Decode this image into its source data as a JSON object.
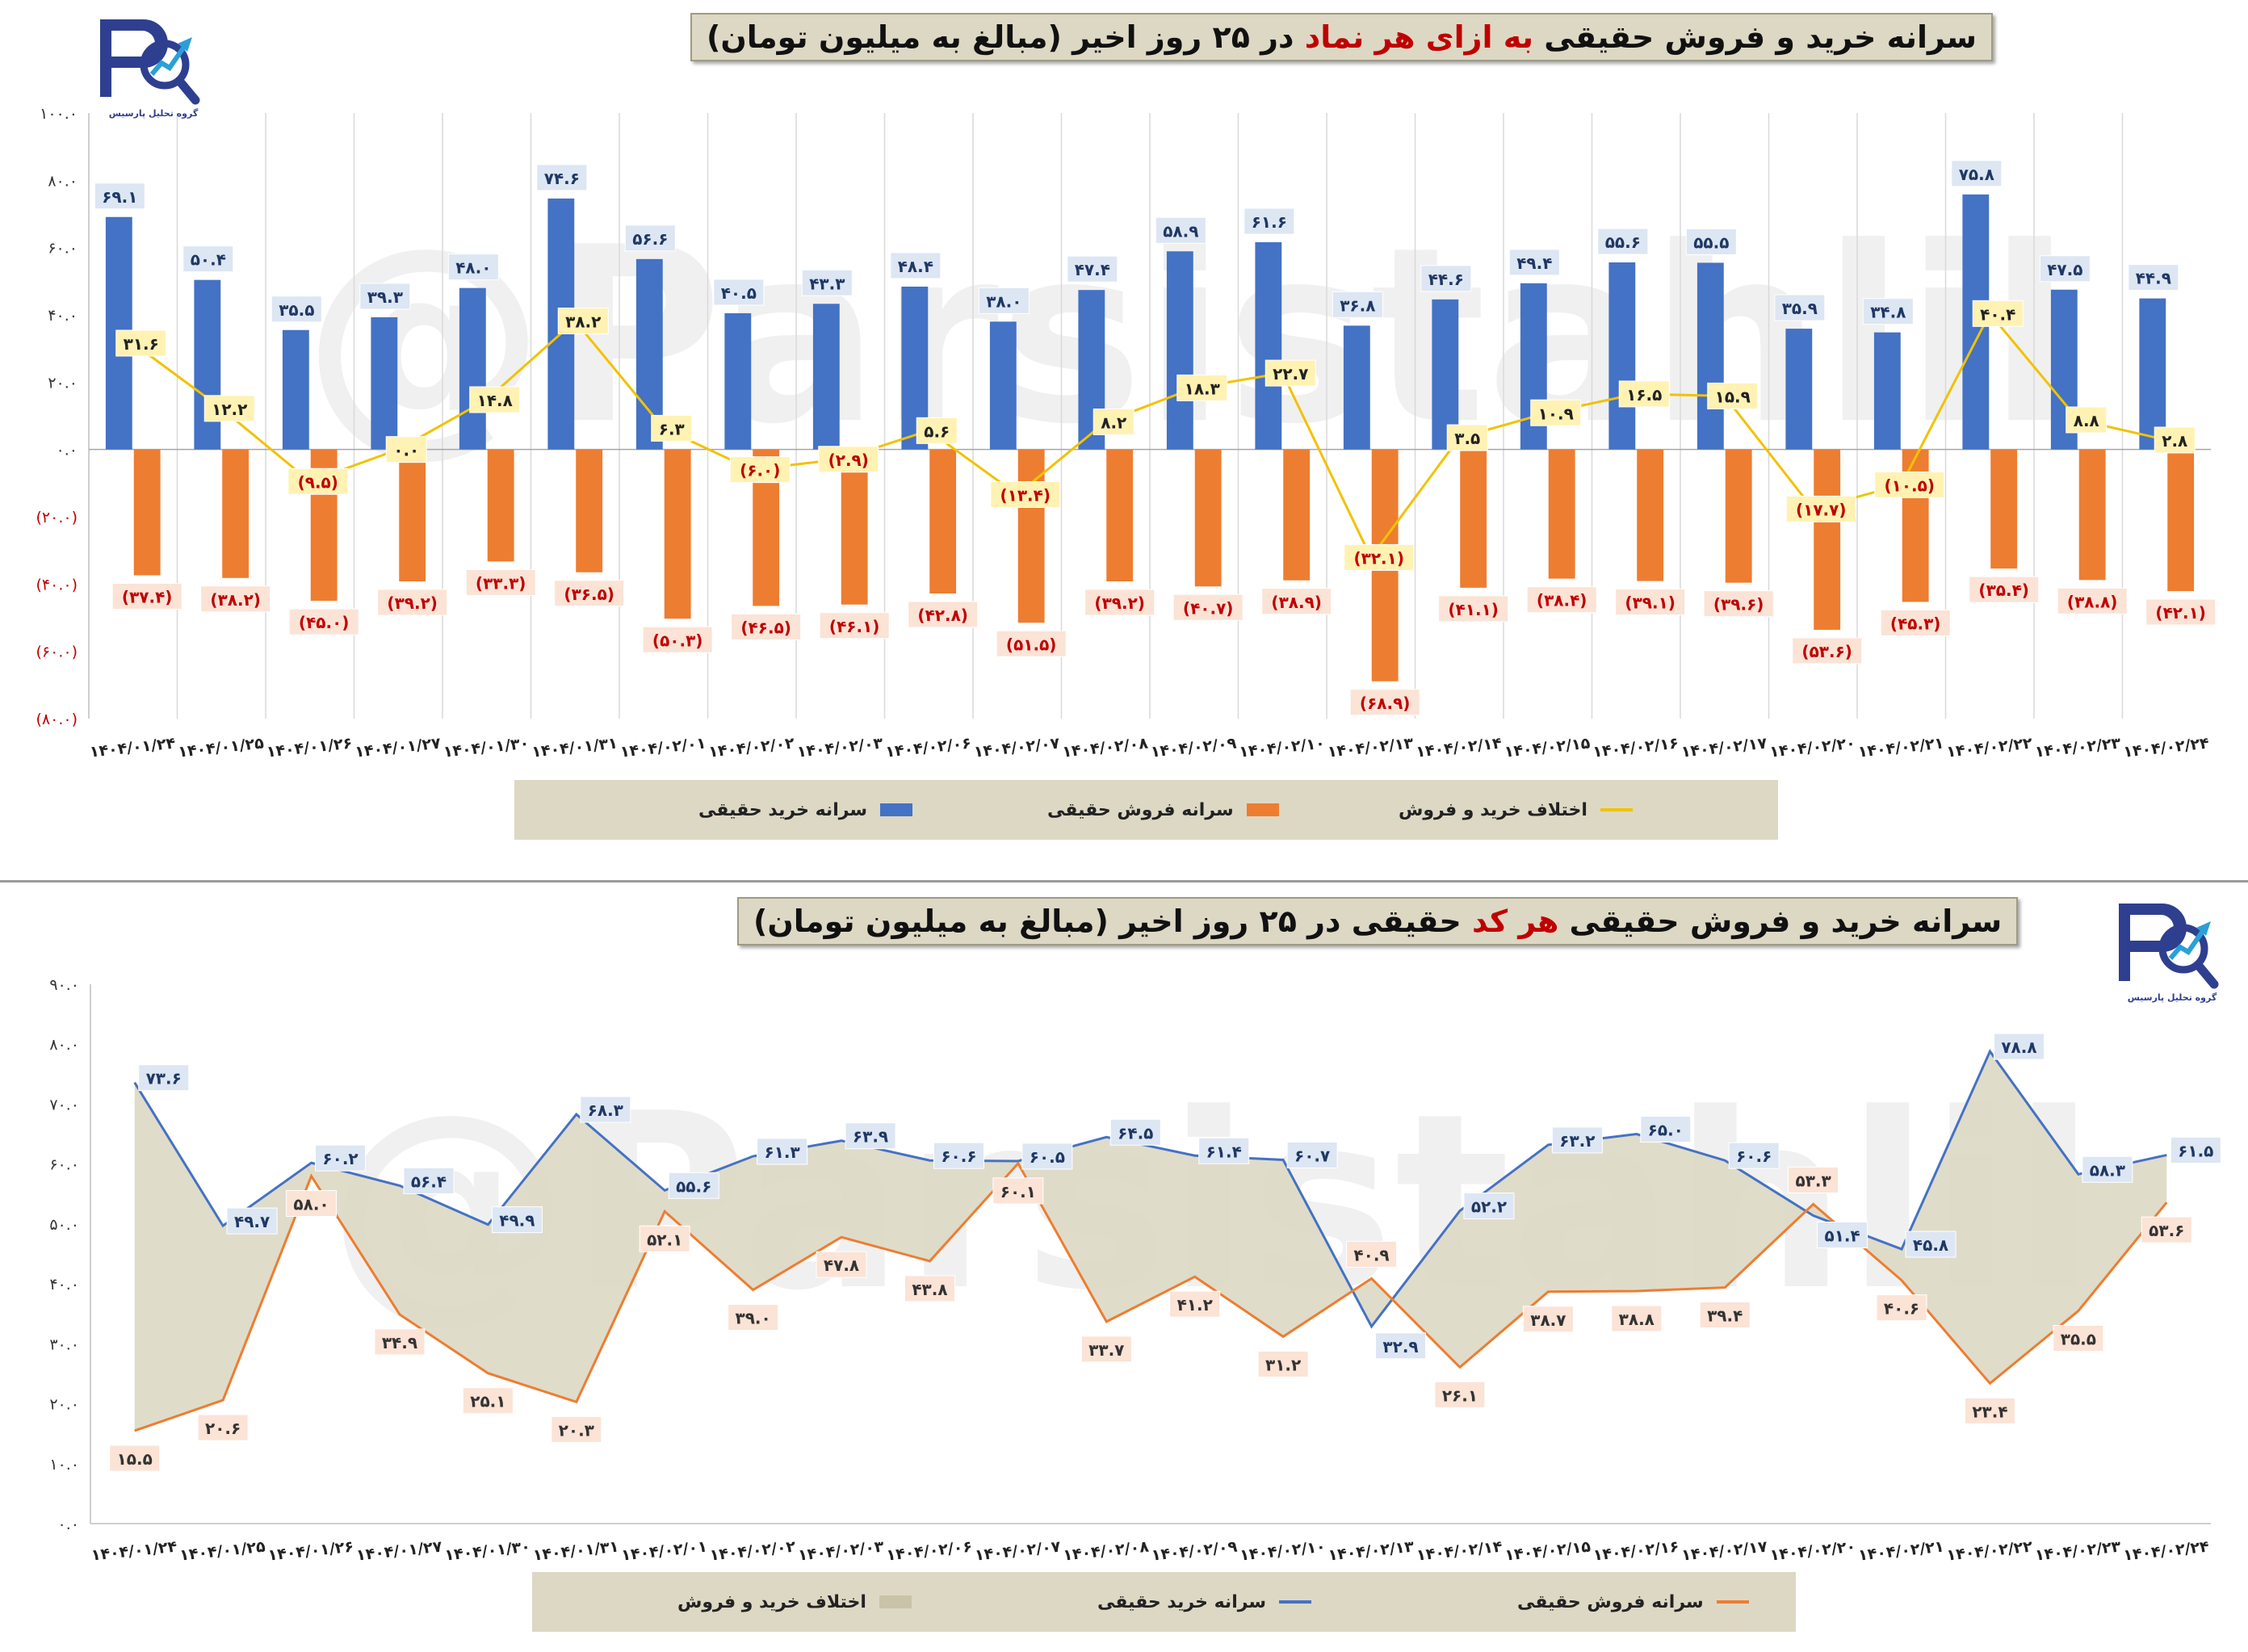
{
  "charts": {
    "top": {
      "title_parts": [
        "سرانه خرید و فروش حقیقی ",
        "به ازای هر نماد",
        " در ۲۵ روز اخیر (مبالغ به میلیون تومان)"
      ],
      "legend": {
        "buy": "سرانه خرید حقیقی",
        "sell": "سرانه فروش حقیقی",
        "diff": "اختلاف خرید و فروش"
      }
    },
    "bottom": {
      "title_parts": [
        "سرانه خرید و فروش حقیقی ",
        "هر کد",
        " حقیقی در ۲۵ روز اخیر (مبالغ به میلیون تومان)"
      ],
      "legend": {
        "diff": "اختلاف خرید و فروش",
        "buy": "سرانه خرید حقیقی",
        "sell": "سرانه فروش حقیقی"
      }
    }
  },
  "logo": {
    "icon": "parsis-tahlil-logo",
    "caption": "گروه تحلیل پارسیس"
  },
  "watermark": "@Parsistahlil",
  "colors": {
    "buy_bar": "#4472c4",
    "sell_bar": "#ed7d31",
    "diff_line": "#f2c200",
    "label_bg_blue": "#dde6f3",
    "label_bg_orange": "#fbe3d6",
    "label_bg_yellow": "#fff2b3",
    "area_fill": "#ddd8c4",
    "legend_bg": "#ddd8c4"
  },
  "chart_data": [
    {
      "type": "bar",
      "categories": [
        "۱۴۰۴/۰۱/۲۴",
        "۱۴۰۴/۰۱/۲۵",
        "۱۴۰۴/۰۱/۲۶",
        "۱۴۰۴/۰۱/۲۷",
        "۱۴۰۴/۰۱/۳۰",
        "۱۴۰۴/۰۱/۳۱",
        "۱۴۰۴/۰۲/۰۱",
        "۱۴۰۴/۰۲/۰۲",
        "۱۴۰۴/۰۲/۰۳",
        "۱۴۰۴/۰۲/۰۶",
        "۱۴۰۴/۰۲/۰۷",
        "۱۴۰۴/۰۲/۰۸",
        "۱۴۰۴/۰۲/۰۹",
        "۱۴۰۴/۰۲/۱۰",
        "۱۴۰۴/۰۲/۱۳",
        "۱۴۰۴/۰۲/۱۴",
        "۱۴۰۴/۰۲/۱۵",
        "۱۴۰۴/۰۲/۱۶",
        "۱۴۰۴/۰۲/۱۷",
        "۱۴۰۴/۰۲/۲۰",
        "۱۴۰۴/۰۲/۲۱",
        "۱۴۰۴/۰۲/۲۲",
        "۱۴۰۴/۰۲/۲۳",
        "۱۴۰۴/۰۲/۲۴"
      ],
      "series": [
        {
          "name": "سرانه خرید حقیقی",
          "kind": "bar",
          "values": [
            69.1,
            50.4,
            35.5,
            39.3,
            48.0,
            74.6,
            56.6,
            40.5,
            43.3,
            48.4,
            38.0,
            47.4,
            58.9,
            61.6,
            36.8,
            44.6,
            49.4,
            55.6,
            55.5,
            35.9,
            34.8,
            75.8,
            47.5,
            44.9
          ],
          "labels": [
            "۶۹.۱",
            "۵۰.۴",
            "۳۵.۵",
            "۳۹.۳",
            "۴۸.۰",
            "۷۴.۶",
            "۵۶.۶",
            "۴۰.۵",
            "۴۳.۳",
            "۴۸.۴",
            "۳۸.۰",
            "۴۷.۴",
            "۵۸.۹",
            "۶۱.۶",
            "۳۶.۸",
            "۴۴.۶",
            "۴۹.۴",
            "۵۵.۶",
            "۵۵.۵",
            "۳۵.۹",
            "۳۴.۸",
            "۷۵.۸",
            "۴۷.۵",
            "۴۴.۹"
          ]
        },
        {
          "name": "سرانه فروش حقیقی",
          "kind": "bar",
          "values": [
            -37.4,
            -38.2,
            -45.0,
            -39.2,
            -33.3,
            -36.5,
            -50.3,
            -46.5,
            -46.1,
            -42.8,
            -51.5,
            -39.2,
            -40.7,
            -38.9,
            -68.9,
            -41.1,
            -38.4,
            -39.1,
            -39.6,
            -53.6,
            -45.3,
            -35.4,
            -38.8,
            -42.1
          ],
          "labels": [
            "(۳۷.۴)",
            "(۳۸.۲)",
            "(۴۵.۰)",
            "(۳۹.۲)",
            "(۳۳.۳)",
            "(۳۶.۵)",
            "(۵۰.۳)",
            "(۴۶.۵)",
            "(۴۶.۱)",
            "(۴۲.۸)",
            "(۵۱.۵)",
            "(۳۹.۲)",
            "(۴۰.۷)",
            "(۳۸.۹)",
            "(۶۸.۹)",
            "(۴۱.۱)",
            "(۳۸.۴)",
            "(۳۹.۱)",
            "(۳۹.۶)",
            "(۵۳.۶)",
            "(۴۵.۳)",
            "(۳۵.۴)",
            "(۳۸.۸)",
            "(۴۲.۱)"
          ]
        },
        {
          "name": "اختلاف خرید و فروش",
          "kind": "line",
          "values": [
            31.6,
            12.2,
            -9.5,
            0.0,
            14.8,
            38.2,
            6.3,
            -6.0,
            -2.9,
            5.6,
            -13.4,
            8.2,
            18.3,
            22.7,
            -32.1,
            3.5,
            10.9,
            16.5,
            15.9,
            -17.7,
            -10.5,
            40.4,
            8.8,
            2.8
          ],
          "labels": [
            "۳۱.۶",
            "۱۲.۲",
            "(۹.۵)",
            "۰.۰",
            "۱۴.۸",
            "۳۸.۲",
            "۶.۳",
            "(۶.۰)",
            "(۲.۹)",
            "۵.۶",
            "(۱۳.۴)",
            "۸.۲",
            "۱۸.۳",
            "۲۲.۷",
            "(۳۲.۱)",
            "۳.۵",
            "۱۰.۹",
            "۱۶.۵",
            "۱۵.۹",
            "(۱۷.۷)",
            "(۱۰.۵)",
            "۴۰.۴",
            "۸.۸",
            "۲.۸"
          ]
        }
      ],
      "ylim": [
        -80,
        100
      ],
      "yticks": [
        -80,
        -60,
        -40,
        -20,
        0,
        20,
        40,
        60,
        80,
        100
      ],
      "ytick_labels": [
        "(۸۰.۰)",
        "(۶۰.۰)",
        "(۴۰.۰)",
        "(۲۰.۰)",
        "۰.۰",
        "۲۰.۰",
        "۴۰.۰",
        "۶۰.۰",
        "۸۰.۰",
        "۱۰۰.۰"
      ],
      "grid": "vertical",
      "legend_position": "bottom"
    },
    {
      "type": "line",
      "categories": [
        "۱۴۰۴/۰۱/۲۴",
        "۱۴۰۴/۰۱/۲۵",
        "۱۴۰۴/۰۱/۲۶",
        "۱۴۰۴/۰۱/۲۷",
        "۱۴۰۴/۰۱/۳۰",
        "۱۴۰۴/۰۱/۳۱",
        "۱۴۰۴/۰۲/۰۱",
        "۱۴۰۴/۰۲/۰۲",
        "۱۴۰۴/۰۲/۰۳",
        "۱۴۰۴/۰۲/۰۶",
        "۱۴۰۴/۰۲/۰۷",
        "۱۴۰۴/۰۲/۰۸",
        "۱۴۰۴/۰۲/۰۹",
        "۱۴۰۴/۰۲/۱۰",
        "۱۴۰۴/۰۲/۱۳",
        "۱۴۰۴/۰۲/۱۴",
        "۱۴۰۴/۰۲/۱۵",
        "۱۴۰۴/۰۲/۱۶",
        "۱۴۰۴/۰۲/۱۷",
        "۱۴۰۴/۰۲/۲۰",
        "۱۴۰۴/۰۲/۲۱",
        "۱۴۰۴/۰۲/۲۲",
        "۱۴۰۴/۰۲/۲۳",
        "۱۴۰۴/۰۲/۲۴"
      ],
      "series": [
        {
          "name": "سرانه خرید حقیقی",
          "kind": "line",
          "values": [
            73.6,
            49.7,
            60.2,
            56.4,
            49.9,
            68.3,
            55.6,
            61.3,
            63.9,
            60.6,
            60.5,
            64.5,
            61.4,
            60.7,
            32.9,
            52.2,
            63.2,
            65.0,
            60.6,
            51.4,
            45.8,
            78.8,
            58.3,
            61.5
          ],
          "labels": [
            "۷۳.۶",
            "۴۹.۷",
            "۶۰.۲",
            "۵۶.۴",
            "۴۹.۹",
            "۶۸.۳",
            "۵۵.۶",
            "۶۱.۳",
            "۶۳.۹",
            "۶۰.۶",
            "۶۰.۵",
            "۶۴.۵",
            "۶۱.۴",
            "۶۰.۷",
            "۳۲.۹",
            "۵۲.۲",
            "۶۳.۲",
            "۶۵.۰",
            "۶۰.۶",
            "۵۱.۴",
            "۴۵.۸",
            "۷۸.۸",
            "۵۸.۳",
            "۶۱.۵"
          ]
        },
        {
          "name": "سرانه فروش حقیقی",
          "kind": "line",
          "values": [
            15.5,
            20.6,
            58.0,
            34.9,
            25.1,
            20.3,
            52.1,
            39.0,
            47.8,
            43.8,
            60.1,
            33.7,
            41.2,
            31.2,
            40.9,
            26.1,
            38.7,
            38.8,
            39.4,
            53.3,
            40.6,
            23.4,
            35.5,
            53.6
          ],
          "labels": [
            "۱۵.۵",
            "۲۰.۶",
            "۵۸.۰",
            "۳۴.۹",
            "۲۵.۱",
            "۲۰.۳",
            "۵۲.۱",
            "۳۹.۰",
            "۴۷.۸",
            "۴۳.۸",
            "۶۰.۱",
            "۳۳.۷",
            "۴۱.۲",
            "۳۱.۲",
            "۴۰.۹",
            "۲۶.۱",
            "۳۸.۷",
            "۳۸.۸",
            "۳۹.۴",
            "۵۳.۳",
            "۴۰.۶",
            "۲۳.۴",
            "۳۵.۵",
            "۵۳.۶"
          ]
        },
        {
          "name": "اختلاف خرید و فروش",
          "kind": "area_between"
        }
      ],
      "ylim": [
        0,
        90
      ],
      "yticks": [
        0,
        10,
        20,
        30,
        40,
        50,
        60,
        70,
        80,
        90
      ],
      "ytick_labels": [
        "۰.۰",
        "۱۰.۰",
        "۲۰.۰",
        "۳۰.۰",
        "۴۰.۰",
        "۵۰.۰",
        "۶۰.۰",
        "۷۰.۰",
        "۸۰.۰",
        "۹۰.۰"
      ],
      "grid": "none",
      "legend_position": "bottom"
    }
  ]
}
